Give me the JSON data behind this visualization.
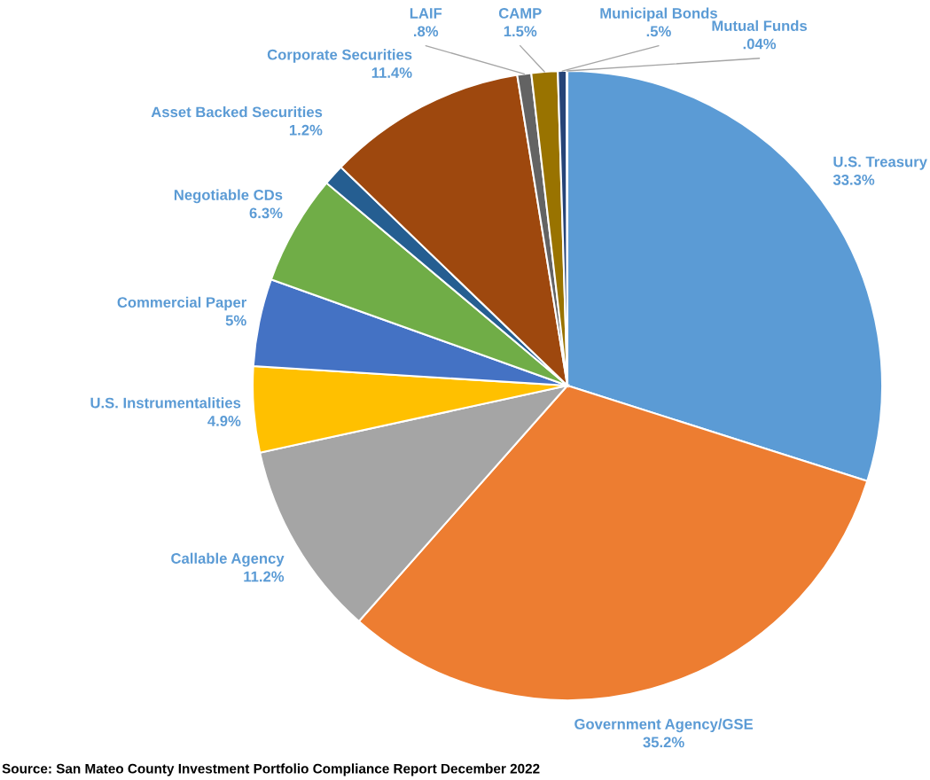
{
  "chart_data": {
    "type": "pie",
    "categories": [
      "U.S. Treasury",
      "Government Agency/GSE",
      "Callable Agency",
      "U.S. Instrumentalities",
      "Commercial Paper",
      "Negotiable CDs",
      "Asset Backed Securities",
      "Corporate Securities",
      "LAIF",
      "CAMP",
      "Municipal Bonds",
      "Mutual Funds"
    ],
    "values": [
      33.3,
      35.2,
      11.2,
      4.9,
      5,
      6.3,
      1.2,
      11.4,
      0.8,
      1.5,
      0.5,
      0.04
    ],
    "value_labels": [
      "33.3%",
      "35.2%",
      "11.2%",
      "4.9%",
      "5%",
      "6.3%",
      "1.2%",
      "11.4%",
      ".8%",
      "1.5%",
      ".5%",
      ".04%"
    ],
    "colors": [
      "#5b9bd5",
      "#ed7d31",
      "#a5a5a5",
      "#ffc000",
      "#4472c4",
      "#70ad47",
      "#255e91",
      "#9e480e",
      "#636363",
      "#997300",
      "#264478",
      "#43682b"
    ],
    "annotations": [
      "Source: San Mateo County Investment Portfolio Compliance Report December 2022"
    ]
  }
}
